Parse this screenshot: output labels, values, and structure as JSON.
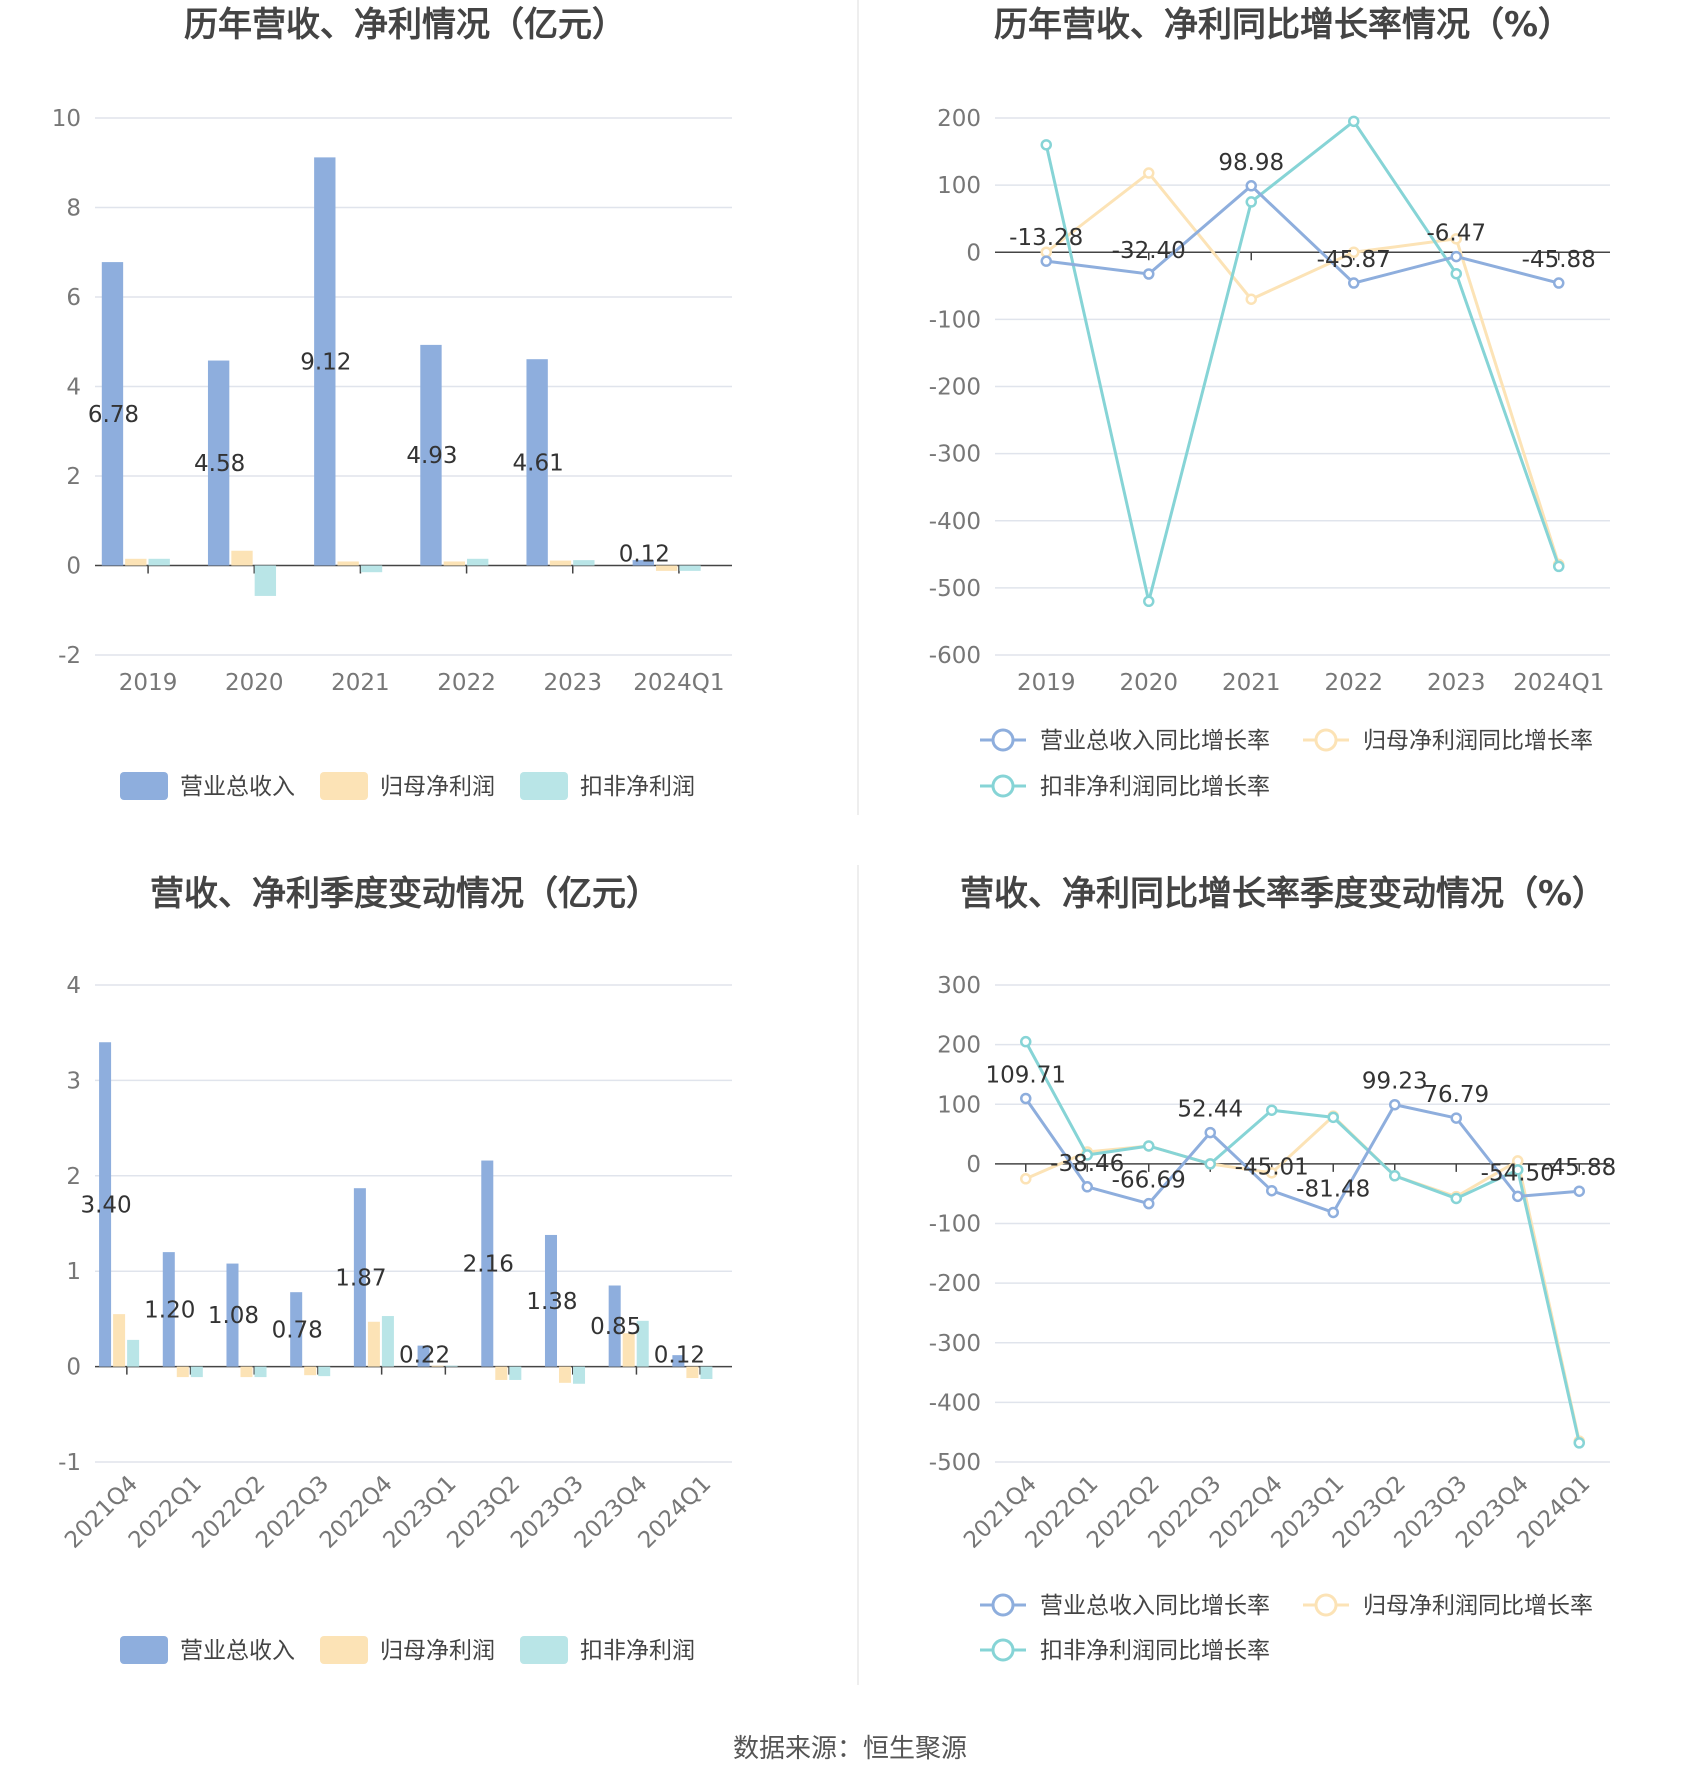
{
  "colors": {
    "revenue": "#8eaedd",
    "net_profit": "#fce3b6",
    "deducted_profit": "#b9e5e7",
    "revenue_line": "#8eaedd",
    "net_line": "#fce3b6",
    "deducted_line": "#86d4d6",
    "grid": "#e0e4ec",
    "axis": "#444444"
  },
  "source_text": "数据来源：恒生聚源",
  "chart_data": [
    {
      "type": "bar",
      "title": "历年营收、净利情况（亿元）",
      "categories": [
        "2019",
        "2020",
        "2021",
        "2022",
        "2023",
        "2024Q1"
      ],
      "ylim": [
        -2,
        10
      ],
      "yticks": [
        -2,
        0,
        2,
        4,
        6,
        8,
        10
      ],
      "legend": "bottom",
      "series": [
        {
          "name": "营业总收入",
          "values": [
            6.78,
            4.58,
            9.12,
            4.93,
            4.61,
            0.12
          ],
          "labels": [
            "6.78",
            "4.58",
            "9.12",
            "4.93",
            "4.61",
            "0.12"
          ]
        },
        {
          "name": "归母净利润",
          "values": [
            0.15,
            0.33,
            0.09,
            0.09,
            0.11,
            -0.12
          ]
        },
        {
          "name": "扣非净利润",
          "values": [
            0.15,
            -0.68,
            -0.15,
            0.15,
            0.12,
            -0.12
          ]
        }
      ]
    },
    {
      "type": "line",
      "title": "历年营收、净利同比增长率情况（%）",
      "categories": [
        "2019",
        "2020",
        "2021",
        "2022",
        "2023",
        "2024Q1"
      ],
      "ylim": [
        -600,
        200
      ],
      "yticks": [
        -600,
        -500,
        -400,
        -300,
        -200,
        -100,
        0,
        100,
        200
      ],
      "legend": "bottom",
      "series": [
        {
          "name": "营业总收入同比增长率",
          "values": [
            -13.28,
            -32.4,
            98.98,
            -45.87,
            -6.47,
            -45.88
          ],
          "labels": [
            "-13.28",
            "-32.40",
            "98.98",
            "-45.87",
            "-6.47",
            "-45.88"
          ]
        },
        {
          "name": "归母净利润同比增长率",
          "values": [
            0,
            118,
            -70,
            0,
            20,
            -465
          ]
        },
        {
          "name": "扣非净利润同比增长率",
          "values": [
            160,
            -520,
            75,
            195,
            -32,
            -468
          ]
        }
      ]
    },
    {
      "type": "bar",
      "title": "营收、净利季度变动情况（亿元）",
      "categories": [
        "2021Q4",
        "2022Q1",
        "2022Q2",
        "2022Q3",
        "2022Q4",
        "2023Q1",
        "2023Q2",
        "2023Q3",
        "2023Q4",
        "2024Q1"
      ],
      "ylim": [
        -1,
        4
      ],
      "yticks": [
        -1,
        0,
        1,
        2,
        3,
        4
      ],
      "legend": "bottom",
      "series": [
        {
          "name": "营业总收入",
          "values": [
            3.4,
            1.2,
            1.08,
            0.78,
            1.87,
            0.22,
            2.16,
            1.38,
            0.85,
            0.12
          ],
          "labels": [
            "3.40",
            "1.20",
            "1.08",
            "0.78",
            "1.87",
            "0.22",
            "2.16",
            "1.38",
            "0.85",
            "0.12"
          ]
        },
        {
          "name": "归母净利润",
          "values": [
            0.55,
            -0.11,
            -0.11,
            -0.09,
            0.47,
            0.01,
            -0.14,
            -0.17,
            0.35,
            -0.12
          ]
        },
        {
          "name": "扣非净利润",
          "values": [
            0.28,
            -0.11,
            -0.11,
            -0.1,
            0.53,
            0.01,
            -0.14,
            -0.18,
            0.48,
            -0.13
          ]
        }
      ]
    },
    {
      "type": "line",
      "title": "营收、净利同比增长率季度变动情况（%）",
      "categories": [
        "2021Q4",
        "2022Q1",
        "2022Q2",
        "2022Q3",
        "2022Q4",
        "2023Q1",
        "2023Q2",
        "2023Q3",
        "2023Q4",
        "2024Q1"
      ],
      "ylim": [
        -500,
        300
      ],
      "yticks": [
        -500,
        -400,
        -300,
        -200,
        -100,
        0,
        100,
        200,
        300
      ],
      "legend": "bottom",
      "series": [
        {
          "name": "营业总收入同比增长率",
          "values": [
            109.71,
            -38.46,
            -66.69,
            52.44,
            -45.01,
            -81.48,
            99.23,
            76.79,
            -54.5,
            -45.88
          ],
          "labels": [
            "109.71",
            "-38.46",
            "-66.69",
            "52.44",
            "-45.01",
            "-81.48",
            "99.23",
            "76.79",
            "-54.50",
            "-45.88"
          ]
        },
        {
          "name": "归母净利润同比增长率",
          "values": [
            -25,
            20,
            30,
            0,
            -15,
            80,
            -20,
            -55,
            5,
            -465
          ]
        },
        {
          "name": "扣非净利润同比增长率",
          "values": [
            205,
            15,
            30,
            0,
            90,
            78,
            -20,
            -58,
            -10,
            -468
          ]
        }
      ]
    }
  ]
}
